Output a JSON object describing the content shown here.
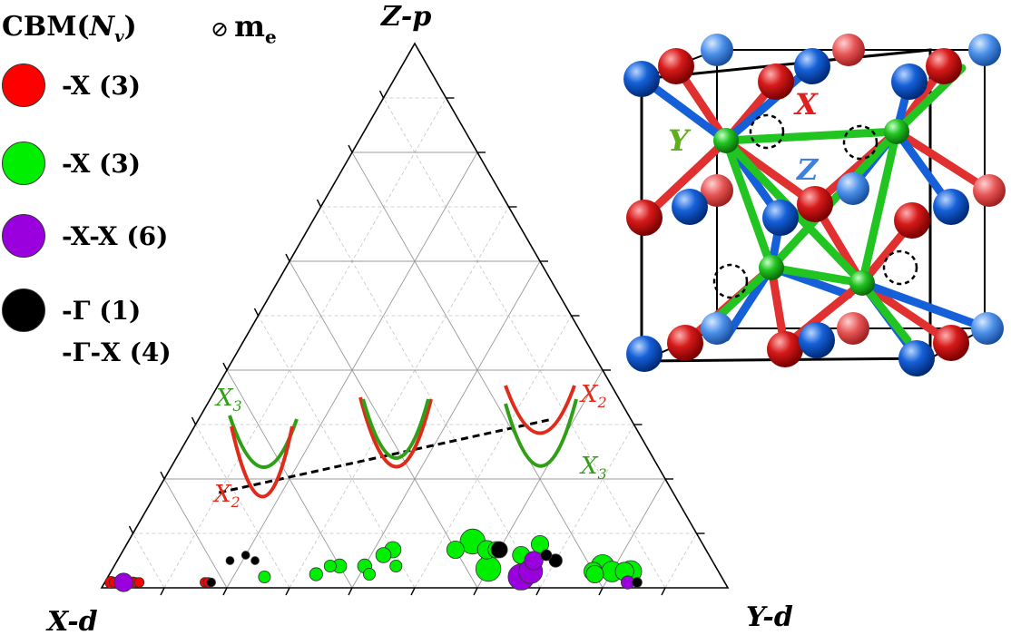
{
  "legend": {
    "title_main": "CBM(",
    "title_nv": "N",
    "title_sub": "v",
    "title_close": ")",
    "me_symbol": "⊘",
    "me_label": "m",
    "me_sub": "e",
    "items": [
      {
        "label": "-X (3)",
        "color": "#ff0000"
      },
      {
        "label": "-X (3)",
        "color": "#00ee00"
      },
      {
        "label": "-X-X (6)",
        "color": "#9900dd"
      },
      {
        "label": "-Γ (1)",
        "color": "#000000"
      }
    ],
    "extra_label": "-Γ-X (4)"
  },
  "axes": {
    "top": "Z-p",
    "left": "X-d",
    "right": "Y-d"
  },
  "inset_labels": {
    "x2_left": "X",
    "x2_left_sub": "2",
    "x3_left": "X",
    "x3_left_sub": "3",
    "x2_right": "X",
    "x2_right_sub": "2",
    "x3_right": "X",
    "x3_right_sub": "3"
  },
  "structure_labels": {
    "x": "X",
    "y": "Y",
    "z": "Z"
  },
  "colors": {
    "red": "#ff0000",
    "green": "#00ee00",
    "purple": "#9900dd",
    "black": "#000000",
    "band_red": "#e02b1a",
    "band_green": "#2fa016",
    "atom_red": "#d61a1a",
    "atom_blue": "#1560d8",
    "atom_green": "#22c422"
  },
  "chart_data": {
    "type": "scatter",
    "coordinate_system": "ternary",
    "components": [
      "X-d",
      "Y-d",
      "Z-p"
    ],
    "grid_step": 0.1,
    "series": [
      {
        "name": "-X (3)",
        "color": "#ff0000",
        "points": [
          {
            "x": 0.98,
            "y": 0.01,
            "z": 0.01,
            "s": 0.3
          },
          {
            "x": 0.97,
            "y": 0.02,
            "z": 0.01,
            "s": 0.25
          },
          {
            "x": 0.96,
            "y": 0.03,
            "z": 0.01,
            "s": 0.3
          },
          {
            "x": 0.955,
            "y": 0.035,
            "z": 0.01,
            "s": 0.2
          },
          {
            "x": 0.945,
            "y": 0.045,
            "z": 0.01,
            "s": 0.25
          },
          {
            "x": 0.94,
            "y": 0.05,
            "z": 0.01,
            "s": 0.2
          },
          {
            "x": 0.975,
            "y": 0.015,
            "z": 0.01,
            "s": 0.2
          },
          {
            "x": 0.935,
            "y": 0.055,
            "z": 0.01,
            "s": 0.2
          },
          {
            "x": 0.83,
            "y": 0.16,
            "z": 0.01,
            "s": 0.2
          },
          {
            "x": 0.825,
            "y": 0.165,
            "z": 0.01,
            "s": 0.2
          }
        ]
      },
      {
        "name": "-X (3)",
        "color": "#00ee00",
        "points": [
          {
            "x": 0.365,
            "y": 0.55,
            "z": 0.085,
            "s": 0.9
          },
          {
            "x": 0.4,
            "y": 0.53,
            "z": 0.07,
            "s": 0.55
          },
          {
            "x": 0.35,
            "y": 0.58,
            "z": 0.07,
            "s": 0.6
          },
          {
            "x": 0.5,
            "y": 0.43,
            "z": 0.07,
            "s": 0.5
          },
          {
            "x": 0.52,
            "y": 0.42,
            "z": 0.06,
            "s": 0.45
          },
          {
            "x": 0.56,
            "y": 0.4,
            "z": 0.04,
            "s": 0.4
          },
          {
            "x": 0.6,
            "y": 0.36,
            "z": 0.04,
            "s": 0.4
          },
          {
            "x": 0.645,
            "y": 0.33,
            "z": 0.025,
            "s": 0.35
          },
          {
            "x": 0.615,
            "y": 0.345,
            "z": 0.04,
            "s": 0.3
          },
          {
            "x": 0.56,
            "y": 0.415,
            "z": 0.025,
            "s": 0.3
          },
          {
            "x": 0.51,
            "y": 0.45,
            "z": 0.04,
            "s": 0.3
          },
          {
            "x": 0.73,
            "y": 0.25,
            "z": 0.02,
            "s": 0.3
          },
          {
            "x": 0.17,
            "y": 0.8,
            "z": 0.03,
            "s": 0.7
          },
          {
            "x": 0.18,
            "y": 0.78,
            "z": 0.04,
            "s": 0.8
          },
          {
            "x": 0.14,
            "y": 0.83,
            "z": 0.03,
            "s": 0.75
          },
          {
            "x": 0.2,
            "y": 0.77,
            "z": 0.03,
            "s": 0.6
          },
          {
            "x": 0.15,
            "y": 0.82,
            "z": 0.03,
            "s": 0.6
          },
          {
            "x": 0.2,
            "y": 0.775,
            "z": 0.025,
            "s": 0.55
          },
          {
            "x": 0.365,
            "y": 0.6,
            "z": 0.035,
            "s": 0.9
          },
          {
            "x": 0.335,
            "y": 0.595,
            "z": 0.07,
            "s": 0.5
          },
          {
            "x": 0.26,
            "y": 0.66,
            "z": 0.08,
            "s": 0.55
          },
          {
            "x": 0.3,
            "y": 0.64,
            "z": 0.06,
            "s": 0.55
          }
        ]
      },
      {
        "name": "-X-X (6)",
        "color": "#9900dd",
        "points": [
          {
            "x": 0.96,
            "y": 0.03,
            "z": 0.01,
            "s": 0.6
          },
          {
            "x": 0.32,
            "y": 0.66,
            "z": 0.02,
            "s": 0.95
          },
          {
            "x": 0.3,
            "y": 0.67,
            "z": 0.03,
            "s": 0.85
          },
          {
            "x": 0.285,
            "y": 0.665,
            "z": 0.05,
            "s": 0.6
          },
          {
            "x": 0.155,
            "y": 0.835,
            "z": 0.01,
            "s": 0.35
          }
        ]
      },
      {
        "name": "-Γ (1)",
        "color": "#000000",
        "points": [
          {
            "x": 0.33,
            "y": 0.6,
            "z": 0.07,
            "s": 0.5
          },
          {
            "x": 0.25,
            "y": 0.7,
            "z": 0.05,
            "s": 0.35
          },
          {
            "x": 0.26,
            "y": 0.68,
            "z": 0.06,
            "s": 0.25
          },
          {
            "x": 0.77,
            "y": 0.18,
            "z": 0.05,
            "s": 0.12
          },
          {
            "x": 0.74,
            "y": 0.2,
            "z": 0.06,
            "s": 0.12
          },
          {
            "x": 0.73,
            "y": 0.22,
            "z": 0.05,
            "s": 0.12
          },
          {
            "x": 0.82,
            "y": 0.17,
            "z": 0.01,
            "s": 0.15
          },
          {
            "x": 0.14,
            "y": 0.85,
            "z": 0.01,
            "s": 0.2
          }
        ]
      }
    ],
    "divider_line": {
      "start": {
        "x": 0.725,
        "y": 0.1,
        "z": 0.175
      },
      "end": {
        "x": 0.125,
        "y": 0.565,
        "z": 0.31
      }
    }
  }
}
